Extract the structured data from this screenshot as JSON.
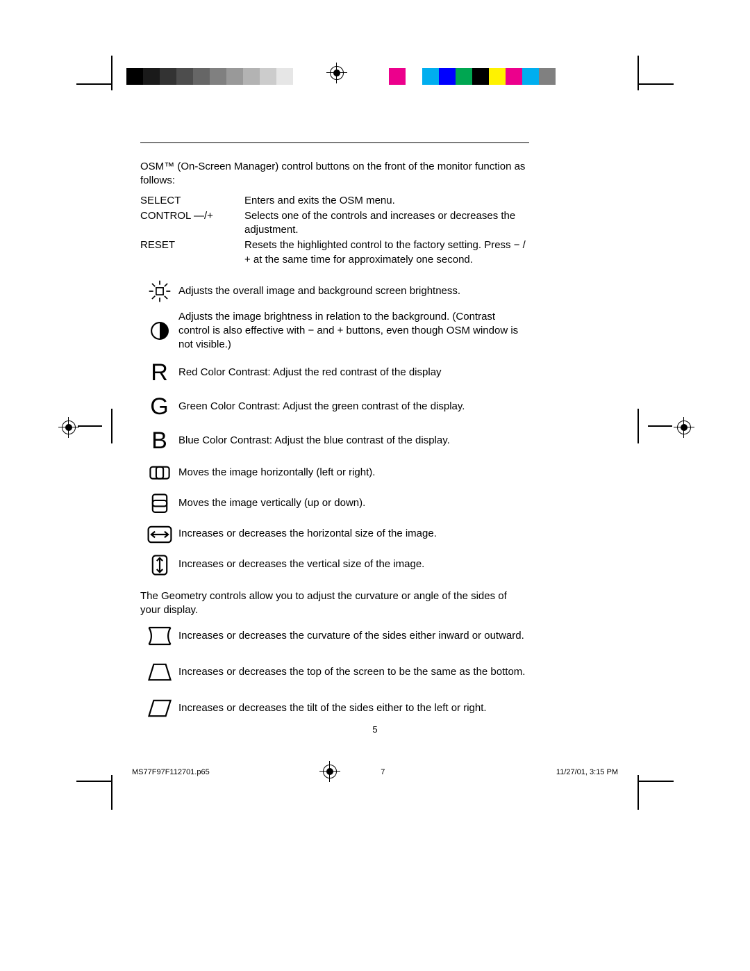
{
  "grayscale_colors": [
    "#000000",
    "#1a1a1a",
    "#333333",
    "#4d4d4d",
    "#666666",
    "#808080",
    "#999999",
    "#b3b3b3",
    "#cccccc",
    "#e6e6e6",
    "#ffffff"
  ],
  "color_colors": [
    "#ec008c",
    "#ffffff",
    "#00aeef",
    "#0000ff",
    "#00a651",
    "#000000",
    "#fff200",
    "#ec008c",
    "#00aeef",
    "#808080",
    "#ffffff"
  ],
  "intro": "OSM™ (On-Screen Manager) control buttons on the front of the monitor function as follows:",
  "controls": {
    "select": {
      "label": "SELECT",
      "desc": "Enters and exits the OSM menu."
    },
    "ctrl": {
      "label": "CONTROL  —/+",
      "desc": "Selects one of the controls and increases or decreases the adjustment."
    },
    "reset": {
      "label": "RESET",
      "desc": "Resets the highlighted control to the factory setting.  Press − / + at the same time for approximately one second."
    }
  },
  "items": {
    "brightness": "Adjusts the overall image and background screen brightness.",
    "contrast": "Adjusts the image brightness in relation to the background. (Contrast control is also effective with − and + buttons, even though OSM window is not visible.)",
    "red": "Red Color Contrast: Adjust the red contrast of the display",
    "green": "Green Color Contrast: Adjust the green contrast of the display.",
    "blue": "Blue Color Contrast: Adjust the blue contrast of the display.",
    "h_pos": "Moves the image horizontally (left or right).",
    "v_pos": "Moves the image vertically (up or down).",
    "h_size": "Increases or decreases the horizontal size of the image.",
    "v_size": "Increases or decreases the vertical size of the image."
  },
  "geometry_para": "The Geometry controls allow you to adjust the curvature or angle of the sides of your display.",
  "geometry": {
    "pincushion": "Increases or decreases the curvature of the sides either inward or outward.",
    "trapezoid": "Increases or decreases the top of the screen to be the same as the bottom.",
    "parallel": "Increases or decreases the tilt of the sides either to the left or right."
  },
  "letters": {
    "r": "R",
    "g": "G",
    "b": "B"
  },
  "page_number": "5",
  "footer": {
    "filename": "MS77F97F112701.p65",
    "sheet": "7",
    "datetime": "11/27/01, 3:15 PM"
  }
}
